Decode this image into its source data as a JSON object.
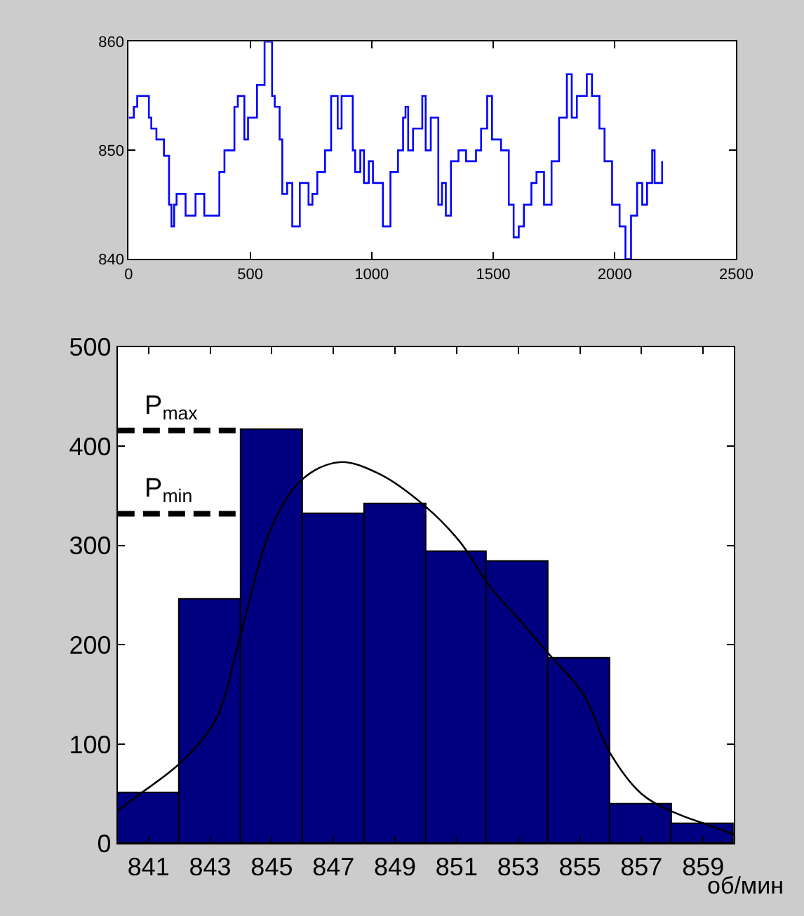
{
  "chart_data": [
    {
      "type": "step",
      "color": "#0000ff",
      "xlim": [
        0,
        2500
      ],
      "ylim": [
        840,
        860
      ],
      "xticks": [
        0,
        500,
        1000,
        1500,
        2000,
        2500
      ],
      "yticks": [
        840,
        850,
        860
      ],
      "x": [
        0,
        21,
        35,
        56,
        83,
        93,
        114,
        145,
        166,
        176,
        187,
        197,
        217,
        234,
        255,
        275,
        296,
        311,
        346,
        373,
        394,
        414,
        435,
        449,
        476,
        491,
        528,
        559,
        590,
        601,
        621,
        632,
        652,
        673,
        690,
        704,
        729,
        740,
        756,
        776,
        808,
        833,
        860,
        876,
        922,
        932,
        953,
        968,
        988,
        1005,
        1046,
        1077,
        1108,
        1129,
        1139,
        1150,
        1170,
        1208,
        1222,
        1243,
        1274,
        1289,
        1305,
        1326,
        1357,
        1388,
        1429,
        1450,
        1475,
        1495,
        1532,
        1564,
        1584,
        1605,
        1626,
        1657,
        1678,
        1709,
        1740,
        1771,
        1803,
        1823,
        1844,
        1885,
        1906,
        1937,
        1958,
        1989,
        2020,
        2044,
        2067,
        2092,
        2113,
        2133,
        2154,
        2164,
        2185,
        2195
      ],
      "values": [
        853,
        854,
        855,
        855,
        853,
        852,
        851,
        849.5,
        845,
        843,
        845,
        846,
        846,
        844,
        844,
        846,
        846,
        844,
        844,
        848,
        850,
        850,
        854,
        855,
        851,
        853,
        856,
        860,
        855,
        854,
        851,
        846,
        847,
        843,
        843,
        847,
        847,
        845,
        846,
        848,
        850,
        855,
        852,
        855,
        850,
        848,
        850,
        847,
        849,
        847,
        843,
        848,
        850,
        853,
        854,
        850,
        852,
        855,
        850,
        853,
        845,
        847,
        844,
        849,
        850,
        849,
        850,
        852,
        855,
        851,
        850,
        845,
        842,
        843,
        845,
        847,
        848,
        845,
        849,
        853,
        857,
        853,
        855,
        857,
        855,
        852,
        849,
        845,
        843,
        840,
        844,
        847,
        845,
        847,
        850,
        847,
        847,
        849
      ]
    },
    {
      "type": "histogram",
      "xlabel": "об/мин",
      "xlim": [
        840,
        860
      ],
      "ylim": [
        0,
        500
      ],
      "xticks": [
        841,
        843,
        845,
        847,
        849,
        851,
        853,
        855,
        857,
        859
      ],
      "yticks": [
        0,
        100,
        200,
        300,
        400,
        500
      ],
      "series": [
        {
          "type": "histogram",
          "color": "#000080",
          "bins": [
            840,
            842,
            844,
            846,
            848,
            850,
            852,
            854,
            856,
            858,
            860
          ],
          "values": [
            50,
            245,
            416,
            332,
            342,
            294,
            284,
            187,
            40,
            20
          ]
        },
        {
          "type": "line",
          "color": "#000000",
          "x": [
            840.0,
            840.6,
            842.1,
            843.2,
            844.0,
            845.0,
            846.0,
            847.2,
            848.5,
            850.0,
            851.1,
            852.1,
            853.1,
            854.1,
            855.1,
            856.0,
            857.0,
            858.0,
            859.3,
            860.0
          ],
          "values": [
            33,
            47,
            83,
            126,
            212,
            319,
            367,
            384,
            372,
            339,
            304,
            258,
            223,
            187,
            151,
            90,
            50,
            32,
            17,
            9
          ]
        }
      ],
      "ref_lines": [
        {
          "axis": "y",
          "value": 416,
          "label": "P$_{max}$",
          "color": "#000000",
          "line_style": "dashed"
        },
        {
          "axis": "y",
          "value": 332,
          "label": "P$_{min}$",
          "color": "#000000",
          "line_style": "dashed"
        }
      ]
    }
  ]
}
